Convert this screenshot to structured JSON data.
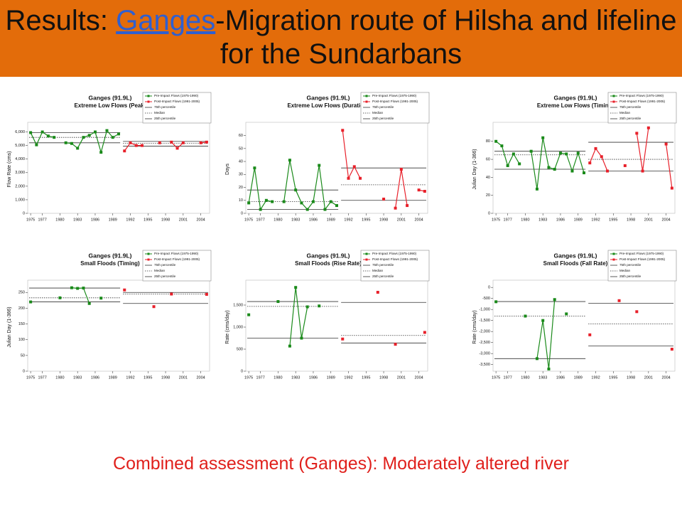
{
  "header": {
    "title_before": "Results: ",
    "title_link": "Ganges",
    "title_after": "-Migration route of Hilsha and lifeline for the Sundarbans"
  },
  "footer": "Combined assessment (Ganges): Moderately altered river",
  "chart_data": [
    {
      "type": "line",
      "title": "Ganges (91.9L)",
      "subtitle": "Extreme Low Flows (Peak)",
      "y_label": "Flow Rate (cms)",
      "xlim": [
        1974.5,
        2005.5
      ],
      "xticks": [
        1975,
        1977,
        1980,
        1983,
        1986,
        1989,
        1992,
        1995,
        1998,
        2001,
        2004
      ],
      "ylim": [
        0,
        6500
      ],
      "yticks": [
        0,
        {
          "value": 1000,
          "label": "1,000"
        },
        {
          "value": 2000,
          "label": "2,000"
        },
        {
          "value": 3000,
          "label": "3,000"
        },
        {
          "value": 4000,
          "label": "4,000"
        },
        {
          "value": 5000,
          "label": "5,000"
        },
        {
          "value": 6000,
          "label": "6,000"
        }
      ],
      "series": [
        {
          "name": "Pre-Impact Flows (1975-1990)",
          "color": "#1a8a1a",
          "x": [
            1975,
            1976,
            1977,
            1978,
            1979,
            1980,
            1981,
            1982,
            1983,
            1984,
            1985,
            1986,
            1987,
            1988,
            1989,
            1990
          ],
          "values": [
            5950,
            5050,
            6000,
            5700,
            5600,
            null,
            5200,
            5150,
            4800,
            5600,
            5750,
            6000,
            4500,
            6100,
            5600,
            5850
          ]
        },
        {
          "name": "Post-Impact Flows (1991-2005)",
          "color": "#e8202a",
          "x": [
            1991,
            1992,
            1993,
            1994,
            1995,
            1996,
            1997,
            1998,
            1999,
            2000,
            2001,
            2002,
            2003,
            2004,
            2005
          ],
          "values": [
            4600,
            5200,
            5000,
            5000,
            null,
            null,
            5200,
            null,
            5250,
            4800,
            5200,
            null,
            null,
            5200,
            5250
          ]
        }
      ],
      "percentiles": [
        {
          "name": "75th percentile",
          "style": "solid",
          "pre": 5950,
          "post": 5300
        },
        {
          "name": "Median",
          "style": "dotted",
          "pre": 5600,
          "post": 5150
        },
        {
          "name": "25th percentile",
          "style": "solid",
          "pre": 5200,
          "post": 4950
        }
      ]
    },
    {
      "type": "line",
      "title": "Ganges (91.9L)",
      "subtitle": "Extreme Low Flows (Duration)",
      "y_label": "Days",
      "xlim": [
        1974.5,
        2005.5
      ],
      "xticks": [
        1975,
        1977,
        1980,
        1983,
        1986,
        1989,
        1992,
        1995,
        1998,
        2001,
        2004
      ],
      "ylim": [
        0,
        68
      ],
      "yticks": [
        0,
        10,
        20,
        30,
        40,
        50,
        60
      ],
      "series": [
        {
          "name": "Pre-Impact Flows (1975-1990)",
          "color": "#1a8a1a",
          "x": [
            1975,
            1976,
            1977,
            1978,
            1979,
            1980,
            1981,
            1982,
            1983,
            1984,
            1985,
            1986,
            1987,
            1988,
            1989,
            1990
          ],
          "values": [
            8,
            35,
            3,
            10,
            9,
            null,
            9,
            41,
            18,
            8,
            3,
            9,
            37,
            3,
            9,
            6
          ]
        },
        {
          "name": "Post-Impact Flows (1991-2005)",
          "color": "#e8202a",
          "x": [
            1991,
            1992,
            1993,
            1994,
            1995,
            1996,
            1997,
            1998,
            1999,
            2000,
            2001,
            2002,
            2003,
            2004,
            2005
          ],
          "values": [
            64,
            27,
            36,
            27,
            null,
            null,
            null,
            11,
            null,
            4,
            34,
            6,
            null,
            18,
            17
          ]
        }
      ],
      "percentiles": [
        {
          "name": "75th percentile",
          "style": "solid",
          "pre": 18,
          "post": 35
        },
        {
          "name": "Median",
          "style": "dotted",
          "pre": 9,
          "post": 22
        },
        {
          "name": "25th percentile",
          "style": "solid",
          "pre": 3,
          "post": 10
        }
      ]
    },
    {
      "type": "line",
      "title": "Ganges (91.9L)",
      "subtitle": "Extreme Low Flows (Timing)",
      "y_label": "Julian Day (1-366)",
      "xlim": [
        1974.5,
        2005.5
      ],
      "xticks": [
        1975,
        1977,
        1980,
        1983,
        1986,
        1989,
        1992,
        1995,
        1998,
        2001,
        2004
      ],
      "ylim": [
        0,
        98
      ],
      "yticks": [
        0,
        20,
        40,
        60,
        80
      ],
      "series": [
        {
          "name": "Pre-Impact Flows (1975-1990)",
          "color": "#1a8a1a",
          "x": [
            1975,
            1976,
            1977,
            1978,
            1979,
            1980,
            1981,
            1982,
            1983,
            1984,
            1985,
            1986,
            1987,
            1988,
            1989,
            1990
          ],
          "values": [
            80,
            75,
            53,
            66,
            55,
            null,
            69,
            27,
            84,
            51,
            49,
            67,
            66,
            47,
            67,
            45
          ]
        },
        {
          "name": "Post-Impact Flows (1991-2005)",
          "color": "#e8202a",
          "x": [
            1991,
            1992,
            1993,
            1994,
            1995,
            1996,
            1997,
            1998,
            1999,
            2000,
            2001,
            2002,
            2003,
            2004,
            2005
          ],
          "values": [
            56,
            72,
            63,
            47,
            null,
            null,
            53,
            null,
            89,
            47,
            95,
            null,
            null,
            77,
            28
          ]
        }
      ],
      "percentiles": [
        {
          "name": "75th percentile",
          "style": "solid",
          "pre": 69,
          "post": 79
        },
        {
          "name": "Median",
          "style": "dotted",
          "pre": 65,
          "post": 60
        },
        {
          "name": "25th percentile",
          "style": "solid",
          "pre": 49,
          "post": 47
        }
      ]
    },
    {
      "type": "line",
      "title": "Ganges (91.9L)",
      "subtitle": "Small Floods (Timing)",
      "y_label": "Julian Day (1-366)",
      "xlim": [
        1974.5,
        2005.5
      ],
      "xticks": [
        1975,
        1977,
        1980,
        1983,
        1986,
        1989,
        1992,
        1995,
        1998,
        2001,
        2004
      ],
      "ylim": [
        0,
        280
      ],
      "yticks": [
        0,
        50,
        100,
        150,
        200,
        250
      ],
      "series": [
        {
          "name": "Pre-Impact Flows (1975-1990)",
          "color": "#1a8a1a",
          "x": [
            1975,
            1976,
            1977,
            1978,
            1979,
            1980,
            1981,
            1982,
            1983,
            1984,
            1985,
            1986,
            1987,
            1988,
            1989,
            1990
          ],
          "values": [
            220,
            null,
            null,
            null,
            null,
            233,
            null,
            265,
            263,
            264,
            215,
            null,
            232,
            null,
            null,
            null
          ]
        },
        {
          "name": "Post-Impact Flows (1991-2005)",
          "color": "#e8202a",
          "x": [
            1991,
            1992,
            1993,
            1994,
            1995,
            1996,
            1997,
            1998,
            1999,
            2000,
            2001,
            2002,
            2003,
            2004,
            2005
          ],
          "values": [
            258,
            null,
            null,
            null,
            null,
            205,
            null,
            null,
            245,
            null,
            null,
            null,
            null,
            null,
            244
          ]
        }
      ],
      "percentiles": [
        {
          "name": "75th percentile",
          "style": "solid",
          "pre": 264,
          "post": 250
        },
        {
          "name": "Median",
          "style": "dotted",
          "pre": 233,
          "post": 245
        },
        {
          "name": "25th percentile",
          "style": "solid",
          "pre": 220,
          "post": 215
        }
      ]
    },
    {
      "type": "line",
      "title": "Ganges (91.9L)",
      "subtitle": "Small Floods (Rise Rate)",
      "y_label": "Rate (cms/day)",
      "xlim": [
        1974.5,
        2005.5
      ],
      "xticks": [
        1975,
        1977,
        1980,
        1983,
        1986,
        1989,
        1992,
        1995,
        1998,
        2001,
        2004
      ],
      "ylim": [
        0,
        2000
      ],
      "yticks": [
        0,
        500,
        {
          "value": 1000,
          "label": "1,000"
        },
        {
          "value": 1500,
          "label": "1,500"
        }
      ],
      "series": [
        {
          "name": "Pre-Impact Flows (1975-1990)",
          "color": "#1a8a1a",
          "x": [
            1975,
            1976,
            1977,
            1978,
            1979,
            1980,
            1981,
            1982,
            1983,
            1984,
            1985,
            1986,
            1987,
            1988,
            1989,
            1990
          ],
          "values": [
            1280,
            null,
            null,
            null,
            null,
            1580,
            null,
            570,
            1900,
            750,
            1460,
            null,
            1480,
            null,
            null,
            null
          ]
        },
        {
          "name": "Post-Impact Flows (1991-2005)",
          "color": "#e8202a",
          "x": [
            1991,
            1992,
            1993,
            1994,
            1995,
            1996,
            1997,
            1998,
            1999,
            2000,
            2001,
            2002,
            2003,
            2004,
            2005
          ],
          "values": [
            730,
            null,
            null,
            null,
            null,
            null,
            1790,
            null,
            null,
            610,
            null,
            null,
            null,
            null,
            880
          ]
        }
      ],
      "percentiles": [
        {
          "name": "75th percentile",
          "style": "solid",
          "pre": 1580,
          "post": 1560
        },
        {
          "name": "Median",
          "style": "dotted",
          "pre": 1470,
          "post": 810
        },
        {
          "name": "25th percentile",
          "style": "solid",
          "pre": 750,
          "post": 640
        }
      ]
    },
    {
      "type": "line",
      "title": "Ganges (91.9L)",
      "subtitle": "Small Floods (Fall Rate)",
      "y_label": "Rate (cms/day)",
      "xlim": [
        1974.5,
        2005.5
      ],
      "xticks": [
        1975,
        1977,
        1980,
        1983,
        1986,
        1989,
        1992,
        1995,
        1998,
        2001,
        2004
      ],
      "ylim": [
        -3800,
        200
      ],
      "yticks": [
        0,
        -500,
        {
          "value": -1000,
          "label": "-1,000"
        },
        {
          "value": -1500,
          "label": "-1,500"
        },
        {
          "value": -2000,
          "label": "-2,000"
        },
        {
          "value": -2500,
          "label": "-2,500"
        },
        {
          "value": -3000,
          "label": "-3,000"
        },
        {
          "value": -3500,
          "label": "-3,500"
        }
      ],
      "series": [
        {
          "name": "Pre-Impact Flows (1975-1990)",
          "color": "#1a8a1a",
          "x": [
            1975,
            1976,
            1977,
            1978,
            1979,
            1980,
            1981,
            1982,
            1983,
            1984,
            1985,
            1986,
            1987,
            1988,
            1989,
            1990
          ],
          "values": [
            -650,
            null,
            null,
            null,
            null,
            -1300,
            null,
            -3230,
            -1500,
            -3700,
            -550,
            null,
            -1200,
            null,
            null,
            null
          ]
        },
        {
          "name": "Post-Impact Flows (1991-2005)",
          "color": "#e8202a",
          "x": [
            1991,
            1992,
            1993,
            1994,
            1995,
            1996,
            1997,
            1998,
            1999,
            2000,
            2001,
            2002,
            2003,
            2004,
            2005
          ],
          "values": [
            -2150,
            null,
            null,
            null,
            null,
            -600,
            null,
            null,
            -1100,
            null,
            null,
            null,
            null,
            null,
            -2800
          ]
        }
      ],
      "percentiles": [
        {
          "name": "75th percentile",
          "style": "solid",
          "pre": -640,
          "post": -720
        },
        {
          "name": "Median",
          "style": "dotted",
          "pre": -1300,
          "post": -1650
        },
        {
          "name": "25th percentile",
          "style": "solid",
          "pre": -3230,
          "post": -2650
        }
      ]
    }
  ]
}
